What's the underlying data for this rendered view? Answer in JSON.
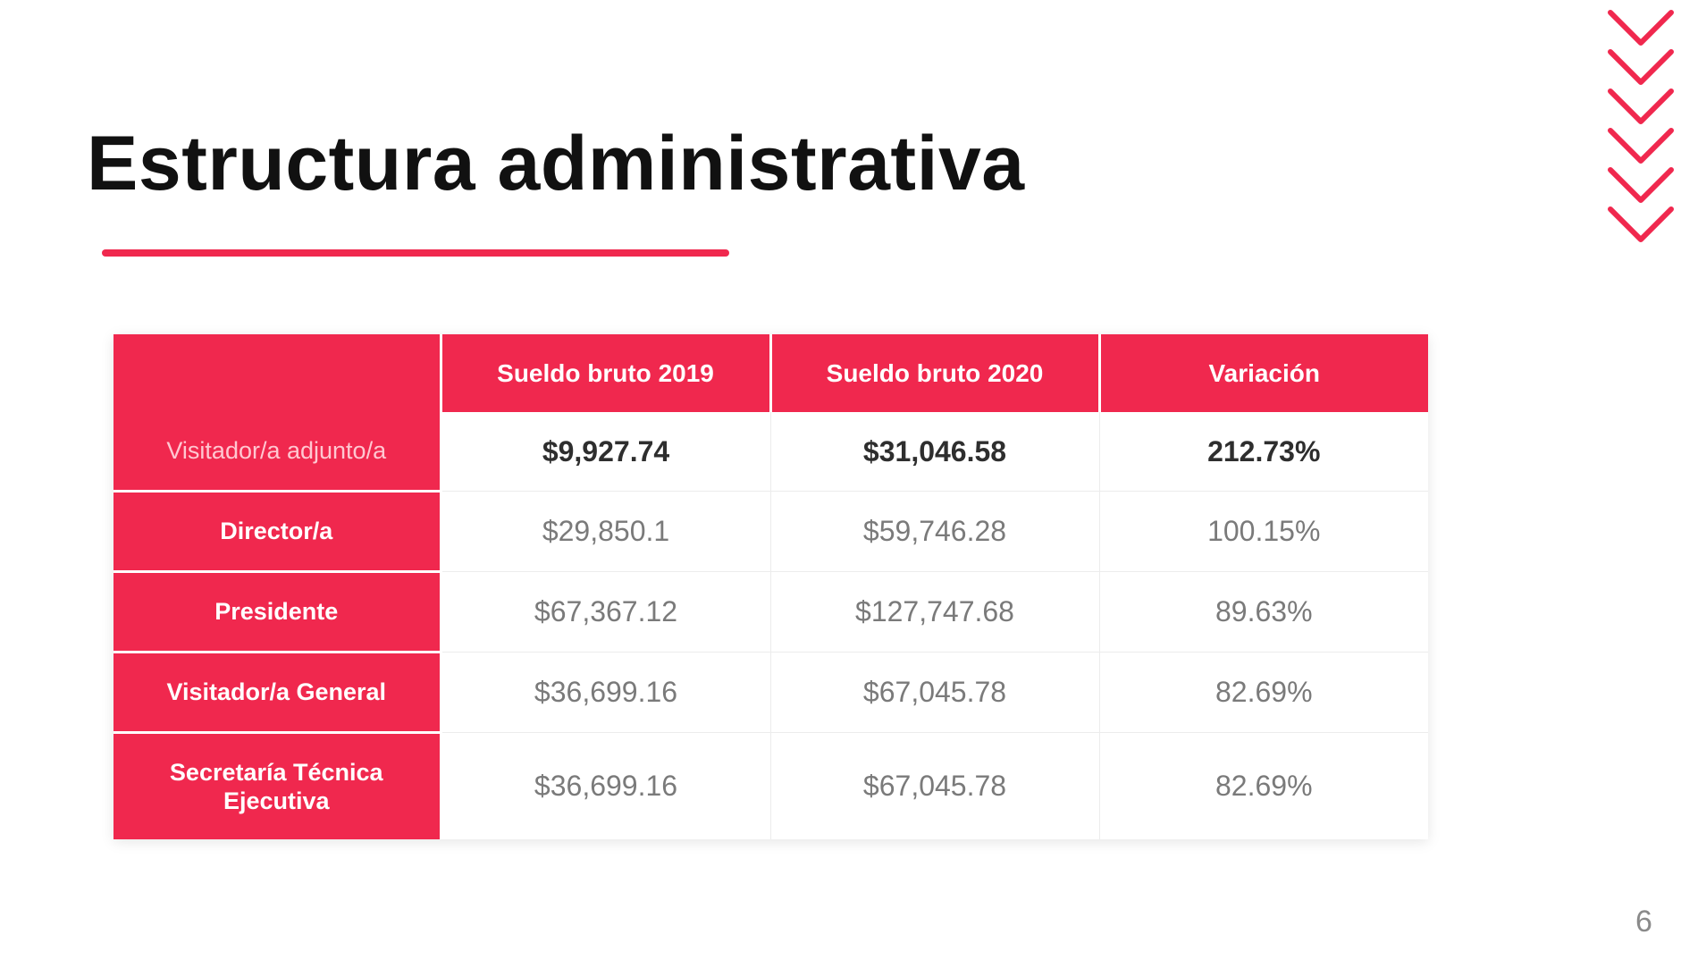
{
  "slide": {
    "title": "Estructura administrativa",
    "page_number": "6"
  },
  "theme": {
    "accent": "#f0284e",
    "title_color": "#111111",
    "text_muted": "#7a7a7a"
  },
  "table": {
    "headers": [
      "",
      "Sueldo bruto 2019",
      "Sueldo bruto 2020",
      "Variación"
    ],
    "rows": [
      {
        "label": "Visitador/a adjunto/a",
        "values": [
          "$9,927.74",
          "$31,046.58",
          "212.73%"
        ]
      },
      {
        "label": "Director/a",
        "values": [
          "$29,850.1",
          "$59,746.28",
          "100.15%"
        ]
      },
      {
        "label": "Presidente",
        "values": [
          "$67,367.12",
          "$127,747.68",
          "89.63%"
        ]
      },
      {
        "label": "Visitador/a General",
        "values": [
          "$36,699.16",
          "$67,045.78",
          "82.69%"
        ]
      },
      {
        "label": "Secretaría Técnica Ejecutiva",
        "values": [
          "$36,699.16",
          "$67,045.78",
          "82.69%"
        ]
      }
    ]
  },
  "decorations": {
    "chevron_icon": "chevron-down-icon",
    "chevron_count": 6
  }
}
